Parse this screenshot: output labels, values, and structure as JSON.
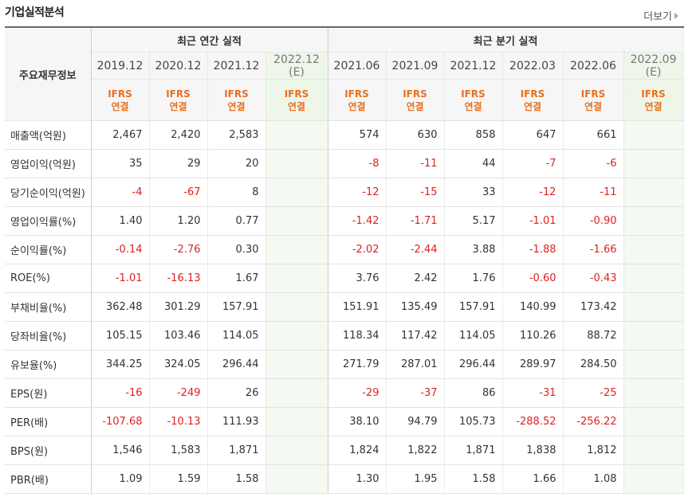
{
  "title": "기업실적분석",
  "more_label": "더보기",
  "header": {
    "row_head": "주요재무정보",
    "annual_group": "최근 연간 실적",
    "quarter_group": "최근 분기 실적",
    "annual_periods": [
      "2019.12",
      "2020.12",
      "2021.12",
      "2022.12"
    ],
    "annual_est": "(E)",
    "quarter_periods": [
      "2021.06",
      "2021.09",
      "2021.12",
      "2022.03",
      "2022.06",
      "2022.09"
    ],
    "quarter_est": "(E)",
    "ifrs_top": "IFRS",
    "ifrs_bottom": "연결"
  },
  "rows": [
    {
      "label": "매출액(억원)",
      "values": [
        "2,467",
        "2,420",
        "2,583",
        "",
        "574",
        "630",
        "858",
        "647",
        "661",
        ""
      ]
    },
    {
      "label": "영업이익(억원)",
      "values": [
        "35",
        "29",
        "20",
        "",
        "-8",
        "-11",
        "44",
        "-7",
        "-6",
        ""
      ]
    },
    {
      "label": "당기순이익(억원)",
      "values": [
        "-4",
        "-67",
        "8",
        "",
        "-12",
        "-15",
        "33",
        "-12",
        "-11",
        ""
      ]
    },
    {
      "label": "영업이익률(%)",
      "values": [
        "1.40",
        "1.20",
        "0.77",
        "",
        "-1.42",
        "-1.71",
        "5.17",
        "-1.01",
        "-0.90",
        ""
      ]
    },
    {
      "label": "순이익률(%)",
      "values": [
        "-0.14",
        "-2.76",
        "0.30",
        "",
        "-2.02",
        "-2.44",
        "3.88",
        "-1.88",
        "-1.66",
        ""
      ]
    },
    {
      "label": "ROE(%)",
      "values": [
        "-1.01",
        "-16.13",
        "1.67",
        "",
        "3.76",
        "2.42",
        "1.76",
        "-0.60",
        "-0.43",
        ""
      ]
    },
    {
      "label": "부채비율(%)",
      "values": [
        "362.48",
        "301.29",
        "157.91",
        "",
        "151.91",
        "135.49",
        "157.91",
        "140.99",
        "173.42",
        ""
      ]
    },
    {
      "label": "당좌비율(%)",
      "values": [
        "105.15",
        "103.46",
        "114.05",
        "",
        "118.34",
        "117.42",
        "114.05",
        "110.26",
        "88.72",
        ""
      ]
    },
    {
      "label": "유보율(%)",
      "values": [
        "344.25",
        "324.05",
        "296.44",
        "",
        "271.79",
        "287.01",
        "296.44",
        "289.97",
        "284.50",
        ""
      ]
    },
    {
      "label": "EPS(원)",
      "values": [
        "-16",
        "-249",
        "26",
        "",
        "-29",
        "-37",
        "86",
        "-31",
        "-25",
        ""
      ]
    },
    {
      "label": "PER(배)",
      "values": [
        "-107.68",
        "-10.13",
        "111.93",
        "",
        "38.10",
        "94.79",
        "105.73",
        "-288.52",
        "-256.22",
        ""
      ]
    },
    {
      "label": "BPS(원)",
      "values": [
        "1,546",
        "1,583",
        "1,871",
        "",
        "1,824",
        "1,822",
        "1,871",
        "1,838",
        "1,812",
        ""
      ]
    },
    {
      "label": "PBR(배)",
      "values": [
        "1.09",
        "1.59",
        "1.58",
        "",
        "1.30",
        "1.95",
        "1.58",
        "1.66",
        "1.08",
        ""
      ]
    }
  ],
  "colors": {
    "negative": "#e02020",
    "ifrs": "#e8701e",
    "estimate_bg": "#eef6ea"
  }
}
